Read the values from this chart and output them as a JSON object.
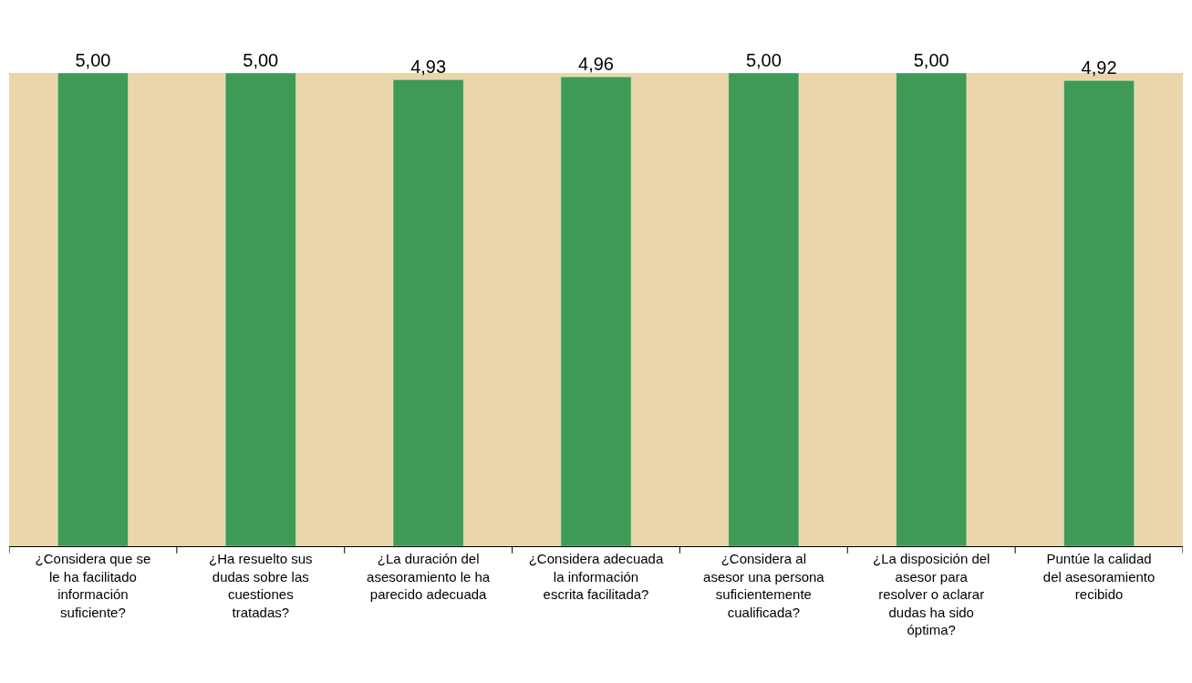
{
  "chart_data": {
    "type": "bar",
    "categories": [
      "¿Considera que se le ha facilitado información suficiente?",
      "¿Ha resuelto sus dudas sobre las cuestiones tratadas?",
      "¿La duración del asesoramiento le ha parecido adecuada",
      "¿Considera adecuada la información escrita facilitada?",
      "¿Considera al asesor una persona suficientemente cualificada?",
      "¿La disposición del asesor para resolver o aclarar dudas ha sido óptima?",
      "Puntúe la calidad del asesoramiento recibido"
    ],
    "values": [
      5.0,
      5.0,
      4.93,
      4.96,
      5.0,
      5.0,
      4.92
    ],
    "value_labels": [
      "5,00",
      "5,00",
      "4,93",
      "4,96",
      "5,00",
      "5,00",
      "4,92"
    ],
    "color": "#3f9a55",
    "ylim": [
      0,
      5
    ],
    "grid": false,
    "legend": false
  }
}
